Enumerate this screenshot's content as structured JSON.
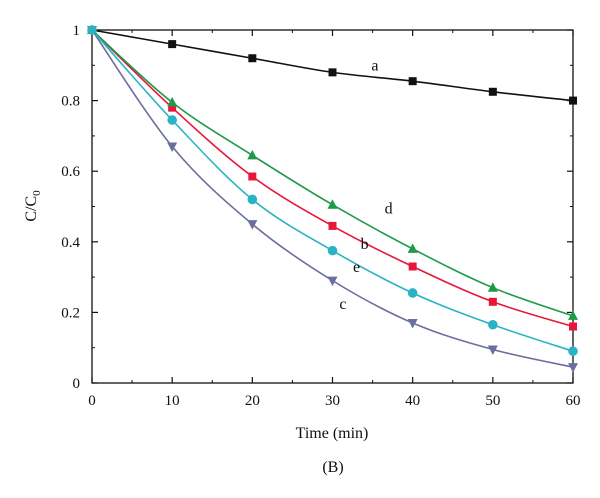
{
  "chart_data": {
    "type": "line",
    "xlabel": "Time (min)",
    "ylabel": "C/C",
    "ylabel_subscript": "0",
    "caption": "(B)",
    "xlim": [
      0,
      60
    ],
    "ylim": [
      0,
      1
    ],
    "xticks": [
      0,
      10,
      20,
      30,
      40,
      50,
      60
    ],
    "yticks": [
      0,
      0.2,
      0.4,
      0.6,
      0.8,
      1
    ],
    "ytick_labels": [
      "0",
      "0.2",
      "0.4",
      "0.6",
      "0.8",
      "1"
    ],
    "grid": false,
    "series": [
      {
        "name": "a",
        "color": "#111111",
        "marker": "square",
        "x": [
          0,
          10,
          20,
          30,
          40,
          50,
          60
        ],
        "y": [
          1.0,
          0.96,
          0.92,
          0.88,
          0.855,
          0.825,
          0.8
        ]
      },
      {
        "name": "b",
        "color": "#e8173a",
        "marker": "square",
        "x": [
          0,
          10,
          20,
          30,
          40,
          50,
          60
        ],
        "y": [
          1.0,
          0.78,
          0.585,
          0.445,
          0.33,
          0.23,
          0.16
        ]
      },
      {
        "name": "c",
        "color": "#6a6f9e",
        "marker": "triangle-down",
        "x": [
          0,
          10,
          20,
          30,
          40,
          50,
          60
        ],
        "y": [
          1.0,
          0.67,
          0.45,
          0.29,
          0.17,
          0.095,
          0.045
        ]
      },
      {
        "name": "d",
        "color": "#1f9a4a",
        "marker": "triangle-up",
        "x": [
          0,
          10,
          20,
          30,
          40,
          50,
          60
        ],
        "y": [
          1.0,
          0.795,
          0.645,
          0.505,
          0.38,
          0.27,
          0.19
        ]
      },
      {
        "name": "e",
        "color": "#2ab3c4",
        "marker": "circle",
        "x": [
          0,
          10,
          20,
          30,
          40,
          50,
          60
        ],
        "y": [
          1.0,
          0.745,
          0.52,
          0.375,
          0.255,
          0.165,
          0.09
        ]
      }
    ],
    "series_labels": [
      {
        "text": "a",
        "x": 35.3,
        "y": 0.885
      },
      {
        "text": "d",
        "x": 37.0,
        "y": 0.48
      },
      {
        "text": "b",
        "x": 34.0,
        "y": 0.38
      },
      {
        "text": "e",
        "x": 33.0,
        "y": 0.315
      },
      {
        "text": "c",
        "x": 31.3,
        "y": 0.21
      }
    ]
  }
}
